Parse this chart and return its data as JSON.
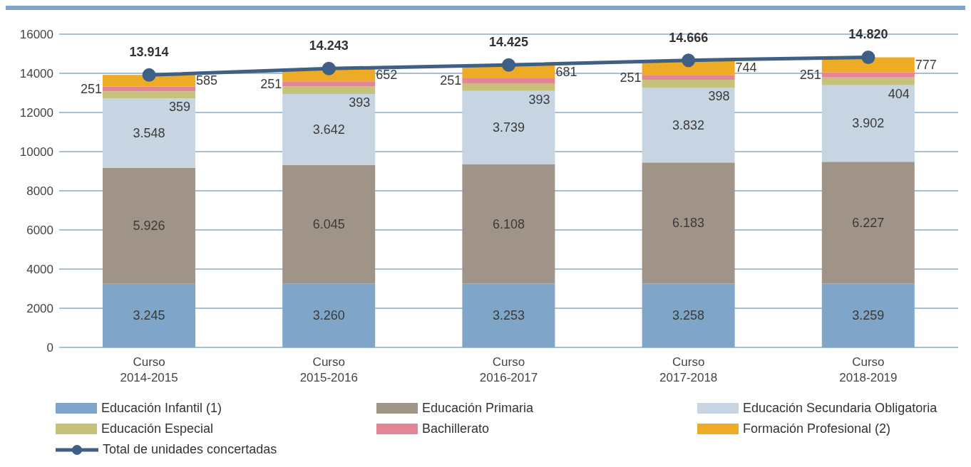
{
  "chart_data": {
    "type": "bar",
    "stacked": true,
    "categories": [
      "Curso 2014-2015",
      "Curso 2015-2016",
      "Curso 2016-2017",
      "Curso 2017-2018",
      "Curso 2018-2019"
    ],
    "series": [
      {
        "name": "Educación Infantil  (1)",
        "color": "#7fa6c8",
        "values": [
          3245,
          3260,
          3253,
          3258,
          3259
        ],
        "value_labels": [
          "3.245",
          "3.260",
          "3.253",
          "3.258",
          "3.259"
        ]
      },
      {
        "name": "Educación Primaria",
        "color": "#a09488",
        "values": [
          5926,
          6045,
          6108,
          6183,
          6227
        ],
        "value_labels": [
          "5.926",
          "6.045",
          "6.108",
          "6.183",
          "6.227"
        ]
      },
      {
        "name": "Educación Secundaria Obligatoria",
        "color": "#c6d5e1",
        "values": [
          3548,
          3642,
          3739,
          3832,
          3902
        ],
        "value_labels": [
          "3.548",
          "3.642",
          "3.739",
          "3.832",
          "3.902"
        ]
      },
      {
        "name": "Educación Especial",
        "color": "#c6c27c",
        "values": [
          359,
          393,
          393,
          398,
          404
        ],
        "value_labels": [
          "359",
          "393",
          "393",
          "398",
          "404"
        ]
      },
      {
        "name": "Bachillerato",
        "color": "#e48595",
        "values": [
          251,
          251,
          251,
          251,
          251
        ],
        "value_labels": [
          "251",
          "251",
          "251",
          "251",
          "251"
        ]
      },
      {
        "name": "Formación Profesional (2)",
        "color": "#eeab25",
        "values": [
          585,
          652,
          681,
          744,
          777
        ],
        "value_labels": [
          "585",
          "652",
          "681",
          "744",
          "777"
        ]
      },
      {
        "name": "Total de unidades concertadas",
        "type": "line",
        "color": "#3f5f85",
        "values": [
          13914,
          14243,
          14425,
          14666,
          14820
        ],
        "value_labels": [
          "13.914",
          "14.243",
          "14.425",
          "14.666",
          "14.820"
        ]
      }
    ],
    "ylim": [
      0,
      16000
    ],
    "yticks": [
      0,
      2000,
      4000,
      6000,
      8000,
      10000,
      12000,
      14000,
      16000
    ],
    "grid": "y",
    "legend": "bottom",
    "marker": "circle"
  }
}
